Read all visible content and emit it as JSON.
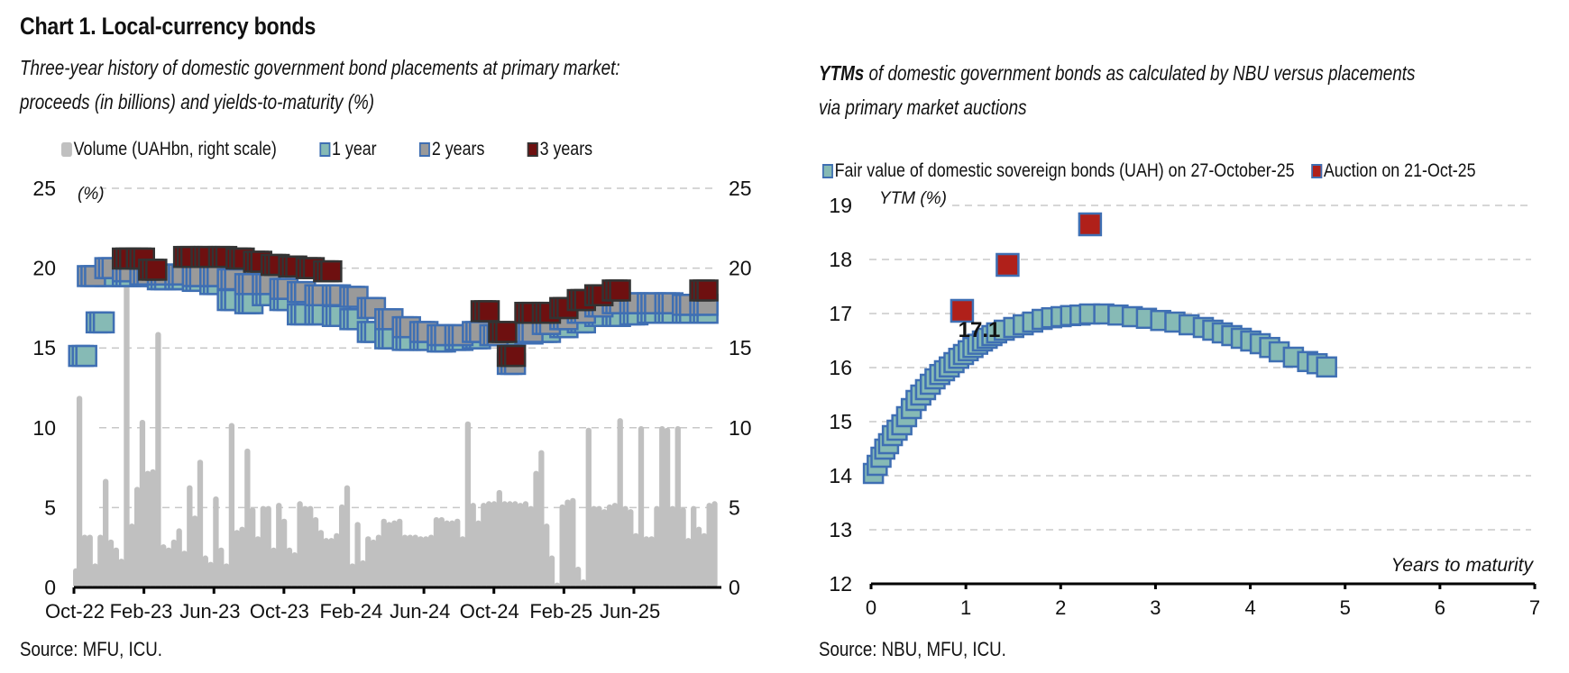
{
  "title": "Chart 1. Local-currency bonds",
  "left": {
    "subtitle_line1": "Three-year history of domestic government bond placements at primary market:",
    "subtitle_line2": "proceeds (in billions) and yields-to-maturity (%)",
    "legend": [
      {
        "label": "Volume (UAHbn, right scale)",
        "fill": "#c0c0c0",
        "stroke": "#c0c0c0"
      },
      {
        "label": "1 year",
        "fill": "#86bab5",
        "stroke": "#3f6fb3"
      },
      {
        "label": "2 years",
        "fill": "#9a9a9a",
        "stroke": "#3f6fb3"
      },
      {
        "label": "3 years",
        "fill": "#6e1010",
        "stroke": "#333333"
      }
    ],
    "source": "Source: MFU, ICU."
  },
  "right": {
    "subtitle_bold": "YTMs",
    "subtitle_line1": " of domestic government bonds as calculated by NBU versus placements",
    "subtitle_line2": "via primary market auctions",
    "legend": [
      {
        "label": "Fair value of domestic sovereign bonds (UAH) on 27-October-25",
        "fill": "#86bab5",
        "stroke": "#3f6fb3"
      },
      {
        "label": "Auction on 21-Oct-25",
        "fill": "#b0201a",
        "stroke": "#3f6fb3"
      }
    ],
    "source": "Source: NBU, MFU, ICU."
  },
  "chart_data": [
    {
      "type": "bar",
      "subtype": "bar+scatter",
      "title": "Three-year history of domestic government bond placements at primary market: proceeds (in billions) and yields-to-maturity (%)",
      "ylabel_left": "(%)",
      "ylabel_right": "",
      "ylim_left": [
        0,
        25
      ],
      "ylim_right": [
        0,
        25
      ],
      "yticks_left": [
        "0",
        "5",
        "10",
        "15",
        "20",
        "25"
      ],
      "yticks_right": [
        "0",
        "5",
        "10",
        "15",
        "20",
        "25"
      ],
      "xticks": [
        "Oct-22",
        "Feb-23",
        "Jun-23",
        "Oct-23",
        "Feb-24",
        "Jun-24",
        "Oct-24",
        "Feb-25",
        "Jun-25"
      ],
      "x_range_months": [
        0,
        37
      ],
      "grid": "horizontal-dashed",
      "legend_position": "top",
      "volume_series": {
        "name": "Volume (UAHbn, right scale)",
        "months": [
          0.1,
          0.3,
          0.6,
          0.9,
          1.2,
          1.5,
          1.8,
          2.1,
          2.4,
          2.7,
          3.0,
          3.3,
          3.6,
          3.9,
          4.2,
          4.5,
          4.8,
          5.1,
          5.4,
          5.7,
          6.0,
          6.3,
          6.6,
          6.9,
          7.2,
          7.5,
          7.8,
          8.1,
          8.4,
          8.7,
          9.0,
          9.3,
          9.6,
          9.9,
          10.2,
          10.5,
          10.8,
          11.1,
          11.4,
          11.7,
          12.0,
          12.3,
          12.6,
          12.9,
          13.2,
          13.5,
          13.8,
          14.1,
          14.4,
          14.7,
          15.0,
          15.3,
          15.6,
          15.9,
          16.2,
          16.5,
          16.8,
          17.1,
          17.4,
          17.7,
          18.0,
          18.3,
          18.6,
          18.9,
          19.2,
          19.5,
          19.8,
          20.1,
          20.4,
          20.7,
          21.0,
          21.3,
          21.6,
          21.9,
          22.2,
          22.5,
          22.8,
          23.1,
          23.4,
          23.7,
          24.0,
          24.3,
          24.6,
          24.9,
          25.2,
          25.5,
          25.8,
          26.1,
          26.4,
          26.7,
          27.0,
          27.3,
          27.6,
          27.9,
          28.2,
          28.5,
          28.8,
          29.1,
          29.4,
          29.7,
          30.0,
          30.3,
          30.6,
          30.9,
          31.2,
          31.5,
          31.8,
          32.1,
          32.4,
          32.7,
          33.0,
          33.3,
          33.6,
          33.9,
          34.2,
          34.5,
          34.8,
          35.1,
          35.4,
          35.7,
          36.0,
          36.3,
          36.6
        ],
        "values": [
          1.2,
          12.0,
          3.3,
          3.3,
          1.5,
          3.3,
          6.8,
          3.0,
          2.5,
          1.8,
          20.5,
          4.0,
          6.3,
          10.5,
          7.3,
          7.4,
          16.0,
          2.7,
          2.5,
          3.0,
          3.7,
          2.3,
          6.4,
          4.5,
          8.0,
          2.0,
          1.6,
          5.7,
          2.5,
          1.5,
          10.3,
          3.6,
          3.8,
          8.7,
          5.0,
          3.2,
          5.1,
          5.1,
          2.5,
          5.3,
          4.3,
          2.5,
          2.2,
          5.4,
          5.1,
          5.1,
          4.4,
          3.6,
          3.1,
          3.1,
          3.4,
          5.2,
          6.4,
          1.5,
          4.1,
          1.7,
          3.2,
          3.0,
          3.3,
          4.3,
          4.1,
          4.2,
          4.3,
          3.3,
          3.3,
          3.3,
          3.2,
          3.2,
          3.3,
          4.4,
          4.4,
          4.2,
          4.2,
          4.3,
          3.2,
          10.4,
          5.3,
          4.2,
          5.3,
          5.4,
          5.4,
          6.1,
          5.4,
          5.4,
          5.4,
          5.3,
          5.4,
          5.1,
          7.3,
          8.6,
          4.0,
          2.0,
          0.3,
          5.2,
          5.5,
          5.6,
          1.3,
          0.5,
          10.0,
          5.1,
          5.1,
          4.9,
          5.2,
          5.3,
          10.6,
          5.1,
          4.9,
          3.4,
          10.1,
          3.2,
          3.2,
          5.1,
          10.1,
          10.0,
          5.1,
          10.1,
          5.0,
          3.1,
          5.1,
          3.8,
          3.4,
          5.3,
          5.4
        ]
      },
      "yield_series": [
        {
          "name": "1 year",
          "months": [
            0.5,
            1.5,
            2.0,
            3.0,
            4.0,
            5.0,
            6.0,
            7.0,
            8.0,
            9.0,
            10.0,
            11.0,
            12.0,
            13.0,
            14.0,
            15.0,
            16.0,
            17.0,
            18.0,
            19.0,
            20.0,
            21.0,
            22.0,
            23.0,
            24.0,
            25.0,
            26.0,
            27.0,
            28.0,
            29.0,
            30.0,
            31.0,
            32.0,
            33.0,
            34.0,
            35.0,
            36.0
          ],
          "values": [
            14.5,
            16.6,
            19.5,
            19.5,
            19.5,
            19.3,
            19.3,
            19.2,
            19.0,
            18.0,
            17.8,
            18.3,
            18.0,
            17.1,
            17.1,
            17.0,
            16.8,
            16.0,
            15.6,
            15.5,
            15.5,
            15.4,
            15.5,
            15.6,
            15.8,
            15.8,
            15.9,
            16.0,
            16.3,
            16.6,
            17.0,
            17.0,
            17.1,
            17.2,
            17.2,
            17.2,
            17.2
          ]
        },
        {
          "name": "2 years",
          "months": [
            1.0,
            2.0,
            3.0,
            4.0,
            5.0,
            6.0,
            7.0,
            8.0,
            9.0,
            10.0,
            11.0,
            12.0,
            13.0,
            14.0,
            15.0,
            16.0,
            17.0,
            18.0,
            19.0,
            20.0,
            21.0,
            22.0,
            23.0,
            24.0,
            25.0,
            26.0,
            27.0,
            28.0,
            29.0,
            30.0,
            31.0,
            32.0,
            33.0,
            34.0,
            35.0,
            36.0
          ],
          "values": [
            19.5,
            20.0,
            19.8,
            19.6,
            19.6,
            19.6,
            19.5,
            19.5,
            19.3,
            19.0,
            19.0,
            18.7,
            18.5,
            18.3,
            18.3,
            18.2,
            17.5,
            16.8,
            16.3,
            16.0,
            15.8,
            15.8,
            16.0,
            15.8,
            14.0,
            16.0,
            16.5,
            16.8,
            17.2,
            17.6,
            17.8,
            17.8,
            17.8,
            17.8,
            17.7,
            17.7
          ]
        },
        {
          "name": "3 years",
          "months": [
            3.0,
            3.8,
            4.5,
            6.5,
            7.5,
            8.5,
            9.5,
            10.5,
            11.5,
            12.5,
            13.5,
            14.5,
            23.5,
            24.5,
            25.0,
            26.0,
            27.0,
            28.0,
            29.0,
            30.0,
            31.0,
            36.0
          ],
          "values": [
            20.6,
            20.6,
            19.9,
            20.7,
            20.7,
            20.7,
            20.6,
            20.4,
            20.2,
            20.1,
            20.0,
            19.8,
            17.3,
            16.0,
            14.5,
            17.2,
            17.2,
            17.5,
            18.0,
            18.3,
            18.6,
            18.6
          ]
        }
      ]
    },
    {
      "type": "scatter",
      "title": "YTMs of domestic government bonds as calculated by NBU versus placements via primary market auctions",
      "xlabel": "Years to maturity",
      "ylabel": "YTM (%)",
      "xlim": [
        0,
        7
      ],
      "ylim": [
        12,
        19
      ],
      "xticks": [
        "0",
        "1",
        "2",
        "3",
        "4",
        "5",
        "6",
        "7"
      ],
      "yticks": [
        "12",
        "13",
        "14",
        "15",
        "16",
        "17",
        "18",
        "19"
      ],
      "grid": "horizontal-dashed",
      "legend_position": "top",
      "annotations": [
        {
          "text": "17.1",
          "x": 1.3,
          "y": 16.7
        }
      ],
      "series": [
        {
          "name": "Fair value of domestic sovereign bonds (UAH) on 27-October-25",
          "x": [
            0.02,
            0.06,
            0.1,
            0.14,
            0.18,
            0.22,
            0.27,
            0.32,
            0.37,
            0.42,
            0.47,
            0.52,
            0.57,
            0.62,
            0.67,
            0.72,
            0.77,
            0.82,
            0.87,
            0.92,
            0.97,
            1.02,
            1.07,
            1.12,
            1.17,
            1.22,
            1.27,
            1.32,
            1.4,
            1.5,
            1.6,
            1.7,
            1.8,
            1.9,
            2.0,
            2.1,
            2.2,
            2.3,
            2.45,
            2.6,
            2.75,
            2.9,
            3.05,
            3.2,
            3.35,
            3.5,
            3.6,
            3.7,
            3.8,
            3.9,
            4.0,
            4.1,
            4.2,
            4.3,
            4.45,
            4.6,
            4.7,
            4.8
          ],
          "y": [
            14.05,
            14.2,
            14.35,
            14.5,
            14.6,
            14.75,
            14.85,
            14.95,
            15.1,
            15.25,
            15.4,
            15.5,
            15.6,
            15.7,
            15.8,
            15.88,
            15.95,
            16.02,
            16.1,
            16.18,
            16.25,
            16.32,
            16.38,
            16.44,
            16.5,
            16.55,
            16.6,
            16.65,
            16.7,
            16.75,
            16.8,
            16.85,
            16.9,
            16.93,
            16.95,
            16.97,
            16.98,
            17.0,
            17.0,
            16.98,
            16.95,
            16.92,
            16.88,
            16.85,
            16.8,
            16.75,
            16.7,
            16.65,
            16.6,
            16.55,
            16.5,
            16.45,
            16.38,
            16.3,
            16.2,
            16.12,
            16.08,
            16.02
          ]
        },
        {
          "name": "Auction on 21-Oct-25",
          "x": [
            0.96,
            1.44,
            2.31
          ],
          "y": [
            17.05,
            17.9,
            18.65
          ]
        }
      ]
    }
  ]
}
